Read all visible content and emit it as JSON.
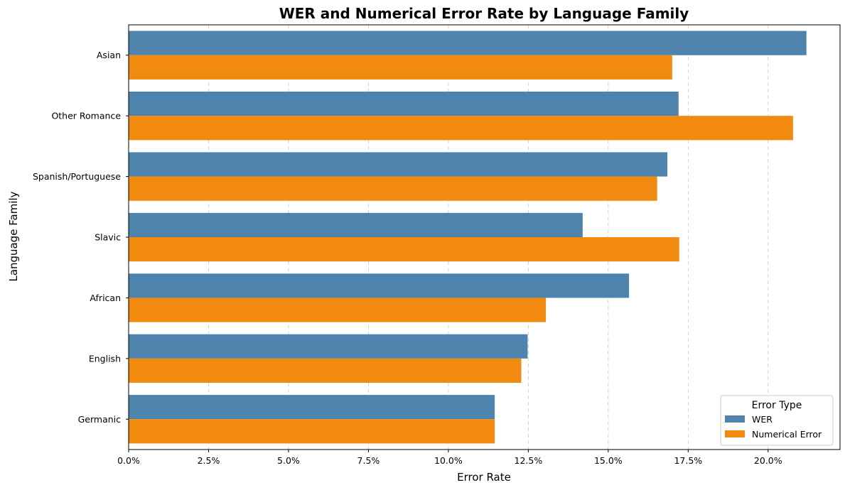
{
  "chart_data": {
    "type": "bar",
    "orientation": "horizontal",
    "title": "WER and Numerical Error Rate by Language Family",
    "xlabel": "Error Rate",
    "ylabel": "Language Family",
    "xlim": [
      0,
      0.2225
    ],
    "xticks": [
      0,
      0.025,
      0.05,
      0.075,
      0.1,
      0.125,
      0.15,
      0.175,
      0.2
    ],
    "xtick_labels": [
      "0.0%",
      "2.5%",
      "5.0%",
      "7.5%",
      "10.0%",
      "12.5%",
      "15.0%",
      "17.5%",
      "20.0%"
    ],
    "categories": [
      "Asian",
      "Other Romance",
      "Spanish/Portuguese",
      "Slavic",
      "African",
      "English",
      "Germanic"
    ],
    "series": [
      {
        "name": "WER",
        "color": "#4e83ad",
        "values": [
          0.212,
          0.172,
          0.1685,
          0.142,
          0.1565,
          0.1248,
          0.1145
        ]
      },
      {
        "name": "Numerical Error",
        "color": "#f28a10",
        "values": [
          0.17,
          0.2078,
          0.1653,
          0.1722,
          0.1305,
          0.1228,
          0.1145
        ]
      }
    ],
    "grid": {
      "x": true,
      "y": false,
      "style": "dashed"
    },
    "legend": {
      "title": "Error Type",
      "position": "lower-right"
    }
  }
}
